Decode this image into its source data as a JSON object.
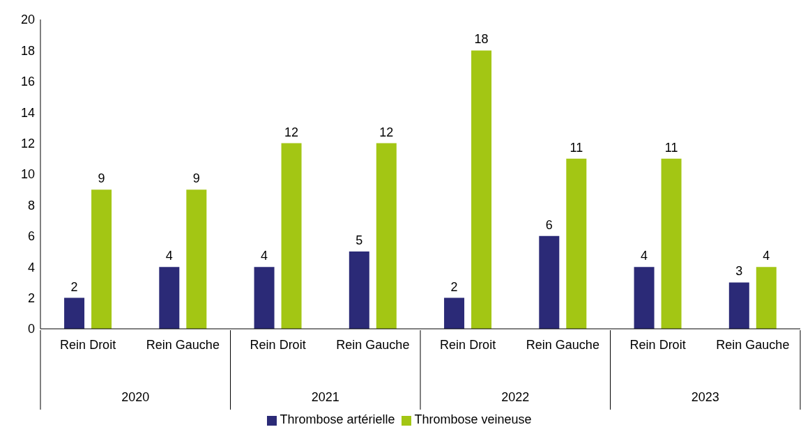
{
  "chart_data": {
    "type": "bar",
    "categories": [
      "Rein Droit",
      "Rein Gauche",
      "Rein Droit",
      "Rein Gauche",
      "Rein Droit",
      "Rein Gauche",
      "Rein Droit",
      "Rein Gauche"
    ],
    "series": [
      {
        "name": "Thrombose artérielle",
        "color": "#2b2a77",
        "values": [
          2,
          4,
          4,
          5,
          2,
          6,
          4,
          3
        ]
      },
      {
        "name": "Thrombose veineuse",
        "color": "#a3c614",
        "values": [
          9,
          9,
          12,
          12,
          18,
          11,
          11,
          4
        ]
      }
    ],
    "annotations": [
      "2020",
      "2021",
      "2022",
      "2023"
    ],
    "ylim": [
      0,
      20
    ],
    "yticks": [
      0,
      2,
      4,
      6,
      8,
      10,
      12,
      14,
      16,
      18,
      20
    ],
    "grid": false,
    "legend": "bottom",
    "data_labels": true
  }
}
